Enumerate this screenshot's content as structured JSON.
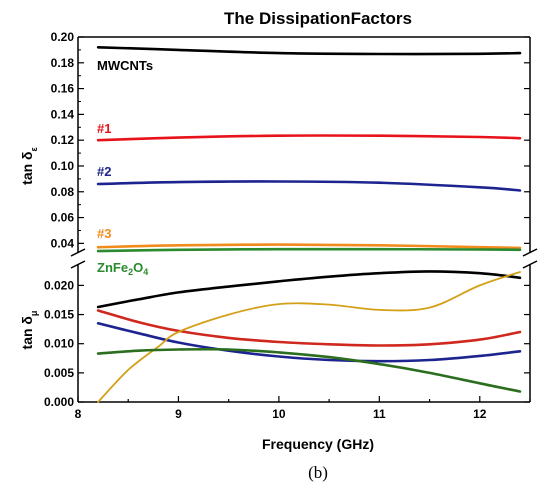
{
  "chart_data": {
    "type": "line",
    "title": "The DissipationFactors",
    "panel_label": "(b)",
    "xlabel": "Frequency (GHz)",
    "xlim": [
      8,
      12.5
    ],
    "x_ticks": [
      "8",
      "9",
      "10",
      "11",
      "12"
    ],
    "top_panel": {
      "ylabel": "tan δ",
      "ylabel_subscript": "ε",
      "ylim": [
        0.03,
        0.2
      ],
      "y_ticks": [
        "0.04",
        "0.06",
        "0.08",
        "0.10",
        "0.12",
        "0.14",
        "0.16",
        "0.18",
        "0.20"
      ],
      "series": [
        {
          "name": "MWCNTs",
          "color": "#000000",
          "x": [
            8.2,
            9,
            10,
            11,
            12,
            12.4
          ],
          "y": [
            0.192,
            0.19,
            0.1875,
            0.1868,
            0.187,
            0.1875
          ]
        },
        {
          "name": "#1",
          "color": "#e8121a",
          "x": [
            8.2,
            9,
            10,
            11,
            12,
            12.4
          ],
          "y": [
            0.12,
            0.122,
            0.1235,
            0.1235,
            0.1225,
            0.1215
          ]
        },
        {
          "name": "#2",
          "color": "#1d2490",
          "x": [
            8.2,
            9,
            10,
            11,
            12,
            12.4
          ],
          "y": [
            0.086,
            0.0875,
            0.088,
            0.087,
            0.0835,
            0.081
          ]
        },
        {
          "name": "#3",
          "color": "#f08c1e",
          "x": [
            8.2,
            9,
            10,
            11,
            12,
            12.4
          ],
          "y": [
            0.037,
            0.0385,
            0.039,
            0.0385,
            0.037,
            0.0365
          ]
        },
        {
          "name": "ZnFe2O4",
          "color": "#2a8a2e",
          "x": [
            8.2,
            9,
            10,
            11,
            12,
            12.4
          ],
          "y": [
            0.034,
            0.035,
            0.0355,
            0.0355,
            0.0352,
            0.035
          ]
        }
      ]
    },
    "bottom_panel": {
      "ylabel": "tan δ",
      "ylabel_subscript": "μ",
      "ylim": [
        0,
        0.0235
      ],
      "y_ticks": [
        "0.000",
        "0.005",
        "0.010",
        "0.015",
        "0.020"
      ],
      "series": [
        {
          "name": "MWCNTs",
          "color": "#000000",
          "x": [
            8.2,
            8.6,
            9,
            9.5,
            10,
            10.5,
            11,
            11.5,
            12,
            12.4
          ],
          "y": [
            0.0163,
            0.0176,
            0.0188,
            0.0198,
            0.0207,
            0.0215,
            0.0221,
            0.0224,
            0.0221,
            0.0213
          ]
        },
        {
          "name": "#1",
          "color": "#d0281e",
          "x": [
            8.2,
            8.6,
            9,
            9.5,
            10,
            10.5,
            11,
            11.5,
            12,
            12.4
          ],
          "y": [
            0.0157,
            0.0137,
            0.0122,
            0.011,
            0.0103,
            0.0099,
            0.0097,
            0.0099,
            0.0107,
            0.012
          ]
        },
        {
          "name": "#2",
          "color": "#1d2490",
          "x": [
            8.2,
            8.6,
            9,
            9.5,
            10,
            10.5,
            11,
            11.5,
            12,
            12.4
          ],
          "y": [
            0.0135,
            0.0118,
            0.0102,
            0.0088,
            0.0078,
            0.0072,
            0.007,
            0.0072,
            0.0079,
            0.0087
          ]
        },
        {
          "name": "#3",
          "color": "#d4a017",
          "x": [
            8.2,
            8.5,
            8.8,
            9,
            9.5,
            10,
            10.5,
            11,
            11.5,
            12,
            12.4
          ],
          "y": [
            0.0,
            0.0055,
            0.0095,
            0.012,
            0.015,
            0.0168,
            0.0167,
            0.0158,
            0.0162,
            0.02,
            0.0223
          ]
        },
        {
          "name": "ZnFe2O4",
          "color": "#2a6e1e",
          "x": [
            8.2,
            8.6,
            9,
            9.5,
            10,
            10.5,
            11,
            11.5,
            12,
            12.4
          ],
          "y": [
            0.0083,
            0.0088,
            0.009,
            0.009,
            0.0085,
            0.0077,
            0.0065,
            0.005,
            0.0032,
            0.0018
          ]
        }
      ]
    },
    "annotations": [
      {
        "text": "MWCNTs",
        "color": "#000000"
      },
      {
        "text": "#1",
        "color": "#e8121a"
      },
      {
        "text": "#2",
        "color": "#1d2490"
      },
      {
        "text": "#3",
        "color": "#f08c1e"
      },
      {
        "text": "ZnFe",
        "sub1": "2",
        "mid": "O",
        "sub2": "4",
        "color": "#2a8a2e"
      }
    ]
  }
}
